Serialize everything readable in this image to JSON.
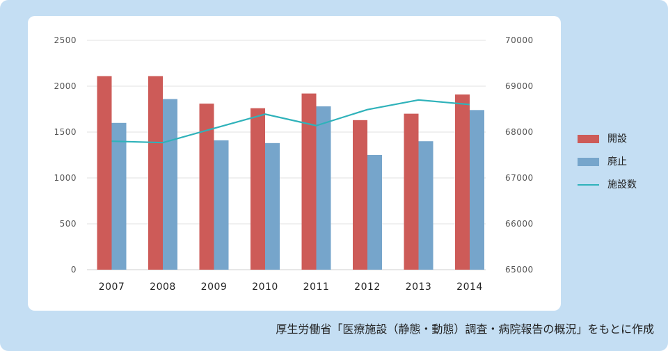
{
  "chart_data": {
    "type": "bar",
    "categories": [
      "2007",
      "2008",
      "2009",
      "2010",
      "2011",
      "2012",
      "2013",
      "2014"
    ],
    "series": [
      {
        "name": "開設",
        "kind": "bar",
        "axis": "left",
        "color": "#cd5b58",
        "values": [
          2110,
          2110,
          1810,
          1760,
          1920,
          1630,
          1700,
          1910
        ]
      },
      {
        "name": "廃止",
        "kind": "bar",
        "axis": "left",
        "color": "#76a5cb",
        "values": [
          1600,
          1860,
          1410,
          1380,
          1780,
          1250,
          1400,
          1740
        ]
      },
      {
        "name": "施設数",
        "kind": "line",
        "axis": "right",
        "color": "#2fb2ba",
        "values": [
          67800,
          67770,
          68080,
          68390,
          68140,
          68490,
          68700,
          68600
        ]
      }
    ],
    "y_left": {
      "min": 0,
      "max": 2500,
      "ticks": [
        "0",
        "500",
        "1000",
        "1500",
        "2000",
        "2500"
      ]
    },
    "y_right": {
      "min": 65000,
      "max": 70000,
      "ticks": [
        "65000",
        "66000",
        "67000",
        "68000",
        "69000",
        "70000"
      ]
    },
    "grid": true,
    "legend_position": "right"
  },
  "source_note": "厚生労働省「医療施設（静態・動態）調査・病院報告の概況」をもとに作成"
}
